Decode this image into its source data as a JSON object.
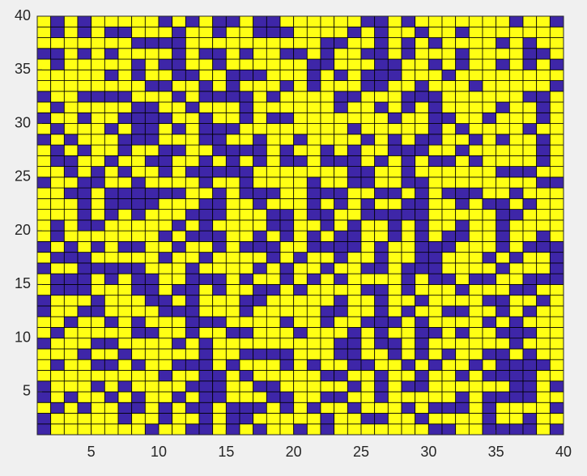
{
  "chart_data": {
    "type": "heatmap",
    "xlim": [
      1,
      40
    ],
    "ylim": [
      1,
      40
    ],
    "xticks": [
      5,
      10,
      15,
      20,
      25,
      30,
      35,
      40
    ],
    "yticks": [
      5,
      10,
      15,
      20,
      25,
      30,
      35,
      40
    ],
    "colors": [
      "#3e26a8",
      "#ffff14"
    ],
    "z": [
      [
        0,
        1,
        1,
        1,
        1,
        1,
        1,
        1,
        0,
        1,
        1,
        0,
        0,
        1,
        0,
        1,
        0,
        1,
        1,
        0,
        1,
        0,
        1,
        1,
        1,
        1,
        1,
        1,
        1,
        0,
        0,
        1,
        1,
        0,
        0,
        0,
        0,
        1,
        0
      ],
      [
        0,
        1,
        1,
        1,
        1,
        1,
        0,
        1,
        1,
        0,
        1,
        1,
        0,
        1,
        0,
        0,
        1,
        1,
        1,
        1,
        1,
        0,
        1,
        1,
        0,
        0,
        1,
        1,
        0,
        1,
        1,
        1,
        1,
        0,
        1,
        1,
        0,
        1,
        1
      ],
      [
        1,
        0,
        1,
        0,
        1,
        1,
        0,
        0,
        1,
        0,
        1,
        0,
        0,
        1,
        0,
        0,
        0,
        1,
        0,
        1,
        0,
        1,
        1,
        0,
        1,
        1,
        1,
        0,
        1,
        0,
        0,
        0,
        1,
        0,
        1,
        1,
        1,
        1,
        0
      ],
      [
        0,
        1,
        0,
        1,
        1,
        0,
        1,
        0,
        1,
        1,
        0,
        1,
        0,
        0,
        1,
        1,
        1,
        0,
        0,
        1,
        1,
        0,
        0,
        1,
        1,
        0,
        1,
        1,
        1,
        1,
        1,
        0,
        1,
        0,
        0,
        0,
        0,
        1,
        1
      ],
      [
        0,
        1,
        1,
        1,
        0,
        1,
        0,
        1,
        1,
        1,
        1,
        0,
        0,
        0,
        1,
        1,
        0,
        0,
        1,
        1,
        1,
        1,
        1,
        0,
        1,
        0,
        1,
        0,
        0,
        1,
        1,
        1,
        1,
        1,
        1,
        0,
        0,
        1,
        0
      ],
      [
        1,
        1,
        1,
        1,
        1,
        1,
        1,
        1,
        1,
        0,
        1,
        1,
        0,
        0,
        1,
        0,
        1,
        1,
        1,
        1,
        1,
        0,
        0,
        1,
        1,
        0,
        1,
        1,
        0,
        1,
        1,
        0,
        1,
        0,
        0,
        0,
        0,
        1,
        1
      ],
      [
        1,
        0,
        1,
        1,
        0,
        0,
        1,
        0,
        1,
        1,
        0,
        0,
        0,
        1,
        0,
        1,
        1,
        1,
        0,
        1,
        0,
        1,
        1,
        0,
        0,
        1,
        1,
        0,
        1,
        0,
        1,
        1,
        0,
        1,
        0,
        0,
        0,
        0,
        1
      ],
      [
        1,
        1,
        1,
        0,
        1,
        1,
        0,
        1,
        1,
        1,
        1,
        1,
        0,
        1,
        1,
        0,
        0,
        0,
        0,
        1,
        1,
        1,
        0,
        0,
        1,
        1,
        0,
        1,
        0,
        1,
        0,
        1,
        1,
        0,
        0,
        1,
        0,
        1,
        1
      ],
      [
        0,
        1,
        1,
        1,
        0,
        0,
        1,
        1,
        1,
        1,
        0,
        1,
        0,
        1,
        1,
        1,
        1,
        1,
        1,
        1,
        1,
        1,
        0,
        0,
        1,
        0,
        0,
        1,
        0,
        1,
        1,
        1,
        1,
        1,
        1,
        0,
        1,
        1,
        1
      ],
      [
        1,
        0,
        1,
        1,
        1,
        1,
        1,
        0,
        0,
        1,
        1,
        0,
        1,
        1,
        0,
        0,
        1,
        1,
        1,
        0,
        1,
        1,
        1,
        0,
        1,
        0,
        1,
        1,
        0,
        0,
        1,
        0,
        1,
        1,
        0,
        0,
        0,
        1,
        1
      ],
      [
        1,
        1,
        0,
        1,
        1,
        0,
        1,
        0,
        1,
        1,
        1,
        0,
        0,
        0,
        1,
        1,
        1,
        1,
        0,
        1,
        1,
        0,
        1,
        1,
        0,
        0,
        0,
        1,
        0,
        1,
        1,
        1,
        1,
        0,
        1,
        0,
        1,
        1,
        1
      ],
      [
        0,
        1,
        1,
        0,
        0,
        1,
        1,
        1,
        1,
        0,
        0,
        0,
        1,
        1,
        1,
        0,
        1,
        1,
        1,
        1,
        1,
        0,
        0,
        1,
        1,
        0,
        1,
        0,
        1,
        1,
        0,
        0,
        1,
        1,
        0,
        1,
        0,
        1,
        1
      ],
      [
        0,
        1,
        1,
        1,
        0,
        1,
        1,
        1,
        0,
        0,
        1,
        0,
        1,
        1,
        1,
        0,
        0,
        1,
        1,
        1,
        1,
        1,
        0,
        1,
        1,
        0,
        1,
        1,
        0,
        1,
        1,
        1,
        1,
        0,
        0,
        1,
        1,
        0,
        1
      ],
      [
        1,
        0,
        0,
        0,
        1,
        1,
        1,
        0,
        0,
        1,
        0,
        0,
        1,
        0,
        1,
        1,
        0,
        0,
        1,
        0,
        1,
        1,
        1,
        1,
        0,
        0,
        1,
        0,
        1,
        1,
        1,
        0,
        1,
        1,
        1,
        0,
        0,
        1,
        1
      ],
      [
        1,
        0,
        0,
        0,
        1,
        0,
        1,
        0,
        0,
        1,
        1,
        0,
        0,
        0,
        1,
        0,
        1,
        1,
        0,
        1,
        0,
        1,
        0,
        1,
        1,
        1,
        1,
        0,
        1,
        0,
        0,
        1,
        0,
        0,
        1,
        1,
        0,
        0,
        0
      ],
      [
        0,
        1,
        1,
        0,
        0,
        0,
        0,
        0,
        1,
        1,
        1,
        0,
        1,
        1,
        1,
        1,
        0,
        1,
        0,
        1,
        1,
        0,
        1,
        1,
        0,
        0,
        1,
        0,
        0,
        0,
        1,
        1,
        1,
        1,
        0,
        1,
        1,
        1,
        0
      ],
      [
        1,
        0,
        0,
        0,
        1,
        1,
        1,
        1,
        1,
        0,
        1,
        1,
        0,
        1,
        1,
        1,
        1,
        0,
        1,
        0,
        1,
        1,
        0,
        1,
        1,
        0,
        1,
        1,
        0,
        0,
        1,
        1,
        1,
        0,
        1,
        0,
        1,
        1,
        0
      ],
      [
        0,
        1,
        0,
        1,
        0,
        1,
        0,
        0,
        1,
        1,
        0,
        1,
        1,
        0,
        1,
        0,
        0,
        0,
        1,
        1,
        0,
        0,
        0,
        0,
        1,
        0,
        1,
        1,
        0,
        0,
        0,
        1,
        1,
        1,
        0,
        1,
        0,
        0,
        0
      ],
      [
        1,
        0,
        1,
        1,
        1,
        1,
        1,
        1,
        1,
        0,
        1,
        0,
        0,
        0,
        1,
        1,
        0,
        1,
        0,
        1,
        0,
        1,
        0,
        0,
        1,
        1,
        0,
        1,
        0,
        1,
        0,
        0,
        1,
        1,
        0,
        1,
        1,
        0,
        1
      ],
      [
        1,
        0,
        1,
        0,
        0,
        1,
        1,
        1,
        1,
        1,
        0,
        1,
        0,
        1,
        1,
        1,
        1,
        0,
        0,
        1,
        1,
        0,
        1,
        0,
        1,
        1,
        0,
        1,
        0,
        1,
        1,
        0,
        1,
        1,
        0,
        1,
        1,
        1,
        1
      ],
      [
        1,
        1,
        1,
        0,
        1,
        0,
        1,
        0,
        1,
        1,
        1,
        0,
        0,
        0,
        1,
        1,
        1,
        0,
        0,
        1,
        0,
        0,
        1,
        1,
        0,
        0,
        0,
        0,
        0,
        1,
        1,
        1,
        1,
        1,
        0,
        0,
        1,
        1,
        1
      ],
      [
        1,
        1,
        1,
        0,
        1,
        0,
        0,
        0,
        0,
        1,
        1,
        1,
        0,
        0,
        1,
        1,
        0,
        1,
        1,
        1,
        0,
        1,
        0,
        1,
        0,
        1,
        1,
        0,
        0,
        1,
        1,
        0,
        1,
        0,
        0,
        1,
        0,
        1,
        1
      ],
      [
        1,
        1,
        0,
        0,
        1,
        0,
        0,
        0,
        0,
        0,
        0,
        1,
        1,
        0,
        1,
        0,
        0,
        0,
        1,
        1,
        0,
        0,
        0,
        1,
        1,
        0,
        0,
        1,
        0,
        1,
        0,
        0,
        0,
        1,
        1,
        0,
        1,
        1,
        1
      ],
      [
        0,
        1,
        1,
        0,
        0,
        1,
        1,
        0,
        1,
        1,
        1,
        1,
        0,
        1,
        1,
        0,
        1,
        1,
        1,
        1,
        0,
        1,
        1,
        0,
        0,
        1,
        1,
        0,
        0,
        1,
        1,
        1,
        1,
        1,
        1,
        1,
        1,
        0,
        0
      ],
      [
        1,
        1,
        0,
        1,
        0,
        1,
        0,
        1,
        1,
        0,
        1,
        0,
        0,
        0,
        0,
        0,
        1,
        1,
        1,
        1,
        1,
        1,
        1,
        0,
        0,
        1,
        1,
        0,
        1,
        1,
        1,
        1,
        1,
        1,
        0,
        0,
        0,
        1,
        1
      ],
      [
        1,
        0,
        0,
        1,
        1,
        0,
        1,
        1,
        0,
        0,
        1,
        1,
        0,
        1,
        0,
        1,
        0,
        1,
        0,
        0,
        1,
        0,
        0,
        0,
        1,
        0,
        1,
        0,
        1,
        0,
        0,
        1,
        0,
        1,
        1,
        1,
        1,
        0,
        1
      ],
      [
        1,
        0,
        1,
        0,
        1,
        1,
        0,
        1,
        1,
        0,
        0,
        1,
        1,
        0,
        0,
        0,
        0,
        1,
        0,
        1,
        1,
        0,
        1,
        0,
        1,
        1,
        0,
        0,
        0,
        1,
        1,
        0,
        1,
        1,
        1,
        1,
        1,
        0,
        1
      ],
      [
        0,
        1,
        0,
        1,
        1,
        1,
        0,
        0,
        0,
        1,
        1,
        1,
        0,
        0,
        1,
        1,
        0,
        1,
        1,
        0,
        1,
        1,
        1,
        1,
        0,
        1,
        0,
        1,
        0,
        0,
        1,
        1,
        0,
        1,
        0,
        1,
        1,
        0,
        1
      ],
      [
        1,
        0,
        1,
        1,
        1,
        0,
        1,
        0,
        0,
        1,
        0,
        1,
        0,
        0,
        0,
        1,
        1,
        1,
        1,
        1,
        1,
        1,
        1,
        0,
        1,
        1,
        1,
        1,
        1,
        0,
        1,
        0,
        1,
        1,
        1,
        1,
        0,
        1,
        1
      ],
      [
        0,
        1,
        1,
        0,
        1,
        1,
        0,
        0,
        0,
        0,
        1,
        1,
        0,
        1,
        1,
        0,
        1,
        0,
        0,
        1,
        1,
        1,
        1,
        1,
        1,
        1,
        0,
        1,
        1,
        0,
        0,
        1,
        1,
        0,
        1,
        1,
        1,
        0,
        1
      ],
      [
        1,
        0,
        1,
        1,
        1,
        1,
        1,
        0,
        0,
        1,
        1,
        0,
        1,
        1,
        1,
        0,
        1,
        1,
        1,
        1,
        1,
        1,
        0,
        1,
        1,
        0,
        1,
        0,
        1,
        0,
        1,
        1,
        1,
        1,
        0,
        1,
        1,
        0,
        1
      ],
      [
        0,
        1,
        1,
        0,
        0,
        0,
        0,
        1,
        1,
        1,
        0,
        1,
        0,
        0,
        0,
        0,
        1,
        0,
        1,
        1,
        1,
        1,
        0,
        0,
        1,
        1,
        1,
        0,
        0,
        0,
        1,
        1,
        1,
        1,
        1,
        1,
        0,
        0,
        1
      ],
      [
        1,
        1,
        1,
        1,
        1,
        1,
        1,
        1,
        0,
        0,
        1,
        1,
        0,
        1,
        0,
        1,
        1,
        1,
        0,
        1,
        0,
        1,
        1,
        1,
        0,
        0,
        1,
        1,
        0,
        1,
        1,
        1,
        0,
        1,
        1,
        1,
        1,
        1,
        0
      ],
      [
        1,
        1,
        1,
        1,
        1,
        0,
        1,
        0,
        1,
        1,
        0,
        0,
        1,
        1,
        0,
        0,
        0,
        1,
        1,
        1,
        0,
        1,
        0,
        1,
        0,
        0,
        0,
        1,
        1,
        1,
        0,
        1,
        1,
        1,
        1,
        1,
        1,
        1,
        1
      ],
      [
        1,
        0,
        1,
        1,
        1,
        1,
        1,
        0,
        1,
        0,
        0,
        1,
        1,
        0,
        1,
        1,
        1,
        1,
        1,
        1,
        0,
        0,
        1,
        1,
        1,
        0,
        0,
        1,
        1,
        0,
        1,
        0,
        1,
        1,
        0,
        1,
        0,
        1,
        0
      ],
      [
        0,
        0,
        1,
        0,
        1,
        0,
        1,
        1,
        1,
        1,
        0,
        1,
        0,
        0,
        1,
        0,
        1,
        1,
        0,
        0,
        1,
        0,
        1,
        1,
        0,
        0,
        1,
        0,
        1,
        1,
        1,
        0,
        1,
        1,
        1,
        1,
        0,
        0,
        1
      ],
      [
        1,
        1,
        1,
        1,
        1,
        1,
        1,
        0,
        0,
        0,
        0,
        1,
        1,
        1,
        1,
        1,
        1,
        1,
        1,
        1,
        1,
        0,
        0,
        1,
        1,
        0,
        1,
        0,
        1,
        0,
        1,
        1,
        1,
        1,
        0,
        1,
        0,
        1,
        1
      ],
      [
        1,
        0,
        1,
        0,
        1,
        0,
        0,
        1,
        1,
        1,
        0,
        1,
        1,
        0,
        1,
        1,
        0,
        0,
        0,
        1,
        1,
        1,
        1,
        0,
        1,
        0,
        1,
        1,
        0,
        1,
        1,
        0,
        1,
        1,
        1,
        1,
        1,
        1,
        1
      ],
      [
        1,
        0,
        1,
        0,
        1,
        1,
        1,
        1,
        1,
        0,
        1,
        0,
        1,
        0,
        0,
        1,
        0,
        0,
        1,
        1,
        1,
        1,
        1,
        1,
        0,
        0,
        1,
        0,
        1,
        1,
        1,
        1,
        1,
        1,
        1,
        0,
        1,
        1,
        0
      ]
    ]
  }
}
